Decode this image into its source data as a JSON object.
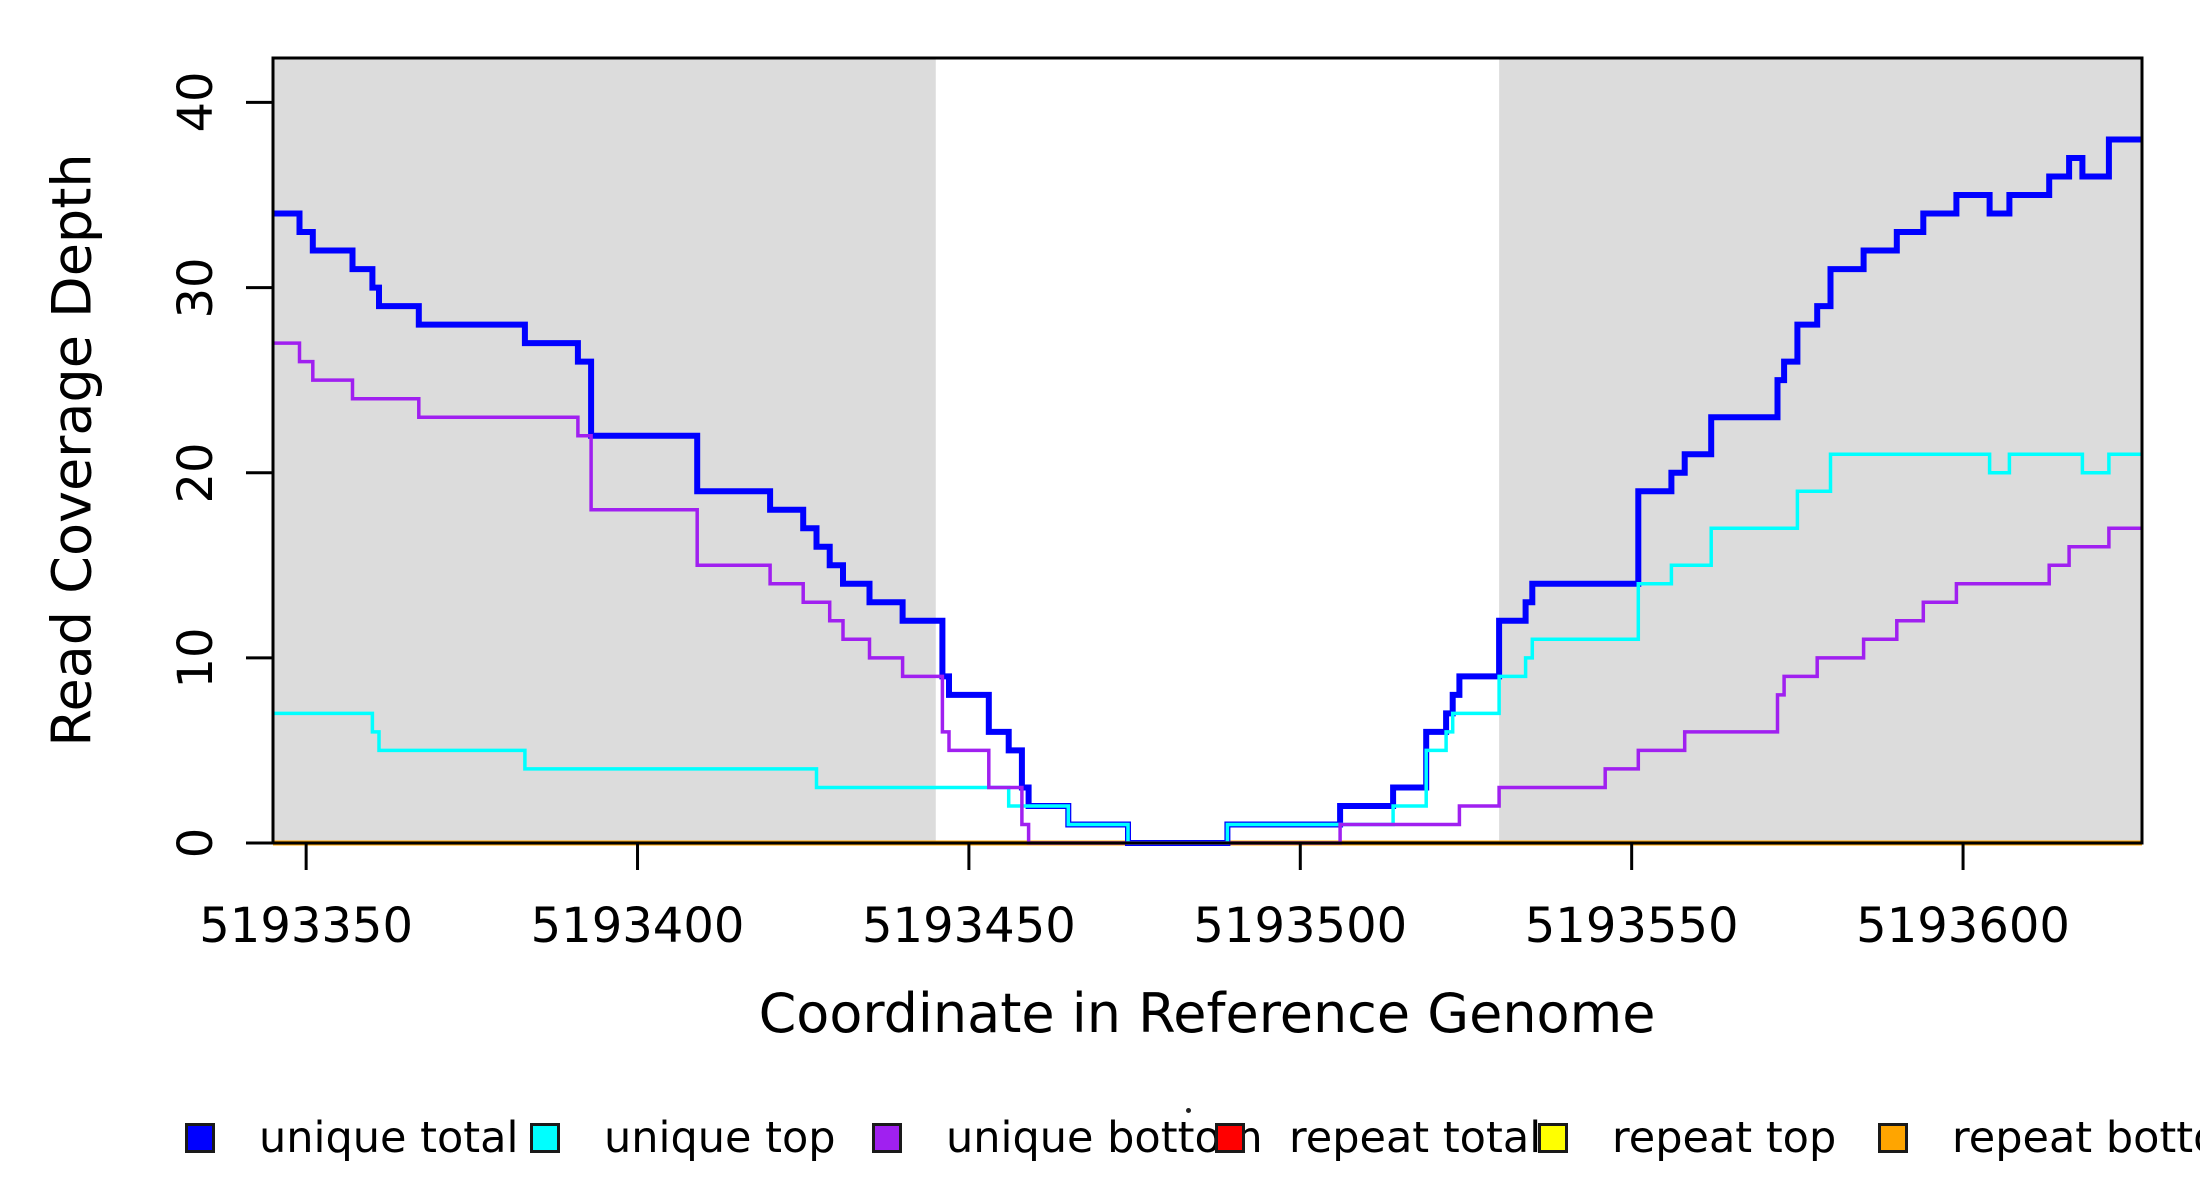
{
  "chart_data": {
    "type": "line",
    "subtype": "step",
    "xlabel": "Coordinate in Reference Genome",
    "ylabel": "Read Coverage Depth",
    "xlim": [
      5193345,
      5193627
    ],
    "ylim": [
      0,
      42.4
    ],
    "x_ticks": [
      5193350,
      5193400,
      5193450,
      5193500,
      5193550,
      5193600
    ],
    "x_tick_labels": [
      "5193350",
      "5193400",
      "5193450",
      "5193500",
      "5193550",
      "5193600"
    ],
    "y_ticks": [
      0,
      10,
      20,
      30,
      40
    ],
    "y_tick_labels": [
      "0",
      "10",
      "20",
      "30",
      "40"
    ],
    "grid": false,
    "legend_position": "bottom",
    "band_color": "#DCDCDC",
    "shaded_regions": [
      [
        5193345,
        5193445
      ],
      [
        5193530,
        5193627
      ]
    ],
    "series_draw_order": [
      3,
      4,
      5,
      0,
      1,
      2
    ],
    "series": [
      {
        "id": "unique-total",
        "name": "unique total",
        "color": "#0000FF",
        "width": 6,
        "points": [
          [
            5193345,
            34
          ],
          [
            5193349,
            33
          ],
          [
            5193351,
            32
          ],
          [
            5193357,
            31
          ],
          [
            5193360,
            30
          ],
          [
            5193361,
            29
          ],
          [
            5193367,
            28
          ],
          [
            5193383,
            27
          ],
          [
            5193391,
            26
          ],
          [
            5193393,
            22
          ],
          [
            5193409,
            19
          ],
          [
            5193420,
            18
          ],
          [
            5193425,
            17
          ],
          [
            5193427,
            16
          ],
          [
            5193429,
            15
          ],
          [
            5193431,
            14
          ],
          [
            5193435,
            13
          ],
          [
            5193440,
            12
          ],
          [
            5193446,
            9
          ],
          [
            5193447,
            8
          ],
          [
            5193453,
            6
          ],
          [
            5193456,
            5
          ],
          [
            5193458,
            3
          ],
          [
            5193459,
            2
          ],
          [
            5193465,
            1
          ],
          [
            5193474,
            0
          ],
          [
            5193489,
            1
          ],
          [
            5193506,
            2
          ],
          [
            5193514,
            3
          ],
          [
            5193519,
            6
          ],
          [
            5193522,
            7
          ],
          [
            5193523,
            8
          ],
          [
            5193524,
            9
          ],
          [
            5193530,
            12
          ],
          [
            5193534,
            13
          ],
          [
            5193535,
            14
          ],
          [
            5193551,
            19
          ],
          [
            5193556,
            20
          ],
          [
            5193558,
            21
          ],
          [
            5193562,
            23
          ],
          [
            5193572,
            25
          ],
          [
            5193573,
            26
          ],
          [
            5193575,
            28
          ],
          [
            5193578,
            29
          ],
          [
            5193580,
            31
          ],
          [
            5193585,
            32
          ],
          [
            5193590,
            33
          ],
          [
            5193594,
            34
          ],
          [
            5193599,
            35
          ],
          [
            5193604,
            34
          ],
          [
            5193607,
            35
          ],
          [
            5193613,
            36
          ],
          [
            5193616,
            37
          ],
          [
            5193618,
            36
          ],
          [
            5193622,
            38
          ]
        ]
      },
      {
        "id": "unique-top",
        "name": "unique top",
        "color": "#00FFFF",
        "width": 3.5,
        "points": [
          [
            5193345,
            7
          ],
          [
            5193360,
            6
          ],
          [
            5193361,
            5
          ],
          [
            5193383,
            4
          ],
          [
            5193427,
            3
          ],
          [
            5193456,
            2
          ],
          [
            5193465,
            1
          ],
          [
            5193474,
            0
          ],
          [
            5193489,
            1
          ],
          [
            5193514,
            2
          ],
          [
            5193519,
            5
          ],
          [
            5193522,
            6
          ],
          [
            5193523,
            7
          ],
          [
            5193530,
            9
          ],
          [
            5193534,
            10
          ],
          [
            5193535,
            11
          ],
          [
            5193551,
            14
          ],
          [
            5193556,
            15
          ],
          [
            5193562,
            17
          ],
          [
            5193575,
            19
          ],
          [
            5193580,
            21
          ],
          [
            5193604,
            20
          ],
          [
            5193607,
            21
          ],
          [
            5193618,
            20
          ],
          [
            5193622,
            21
          ]
        ]
      },
      {
        "id": "unique-bottom",
        "name": "unique bottom",
        "color": "#A020F0",
        "width": 3.5,
        "points": [
          [
            5193345,
            27
          ],
          [
            5193349,
            26
          ],
          [
            5193351,
            25
          ],
          [
            5193357,
            24
          ],
          [
            5193367,
            23
          ],
          [
            5193391,
            22
          ],
          [
            5193393,
            18
          ],
          [
            5193409,
            15
          ],
          [
            5193420,
            14
          ],
          [
            5193425,
            13
          ],
          [
            5193429,
            12
          ],
          [
            5193431,
            11
          ],
          [
            5193435,
            10
          ],
          [
            5193440,
            9
          ],
          [
            5193446,
            6
          ],
          [
            5193447,
            5
          ],
          [
            5193453,
            3
          ],
          [
            5193458,
            1
          ],
          [
            5193459,
            0
          ],
          [
            5193506,
            1
          ],
          [
            5193524,
            2
          ],
          [
            5193530,
            3
          ],
          [
            5193546,
            4
          ],
          [
            5193551,
            5
          ],
          [
            5193558,
            6
          ],
          [
            5193572,
            8
          ],
          [
            5193573,
            9
          ],
          [
            5193578,
            10
          ],
          [
            5193585,
            11
          ],
          [
            5193590,
            12
          ],
          [
            5193594,
            13
          ],
          [
            5193599,
            14
          ],
          [
            5193613,
            15
          ],
          [
            5193616,
            16
          ],
          [
            5193622,
            17
          ]
        ]
      },
      {
        "id": "repeat-total",
        "name": "repeat total",
        "color": "#FF0000",
        "width": 3,
        "points": [
          [
            5193345,
            0
          ]
        ]
      },
      {
        "id": "repeat-top",
        "name": "repeat top",
        "color": "#FFFF00",
        "width": 3,
        "points": [
          [
            5193345,
            0
          ]
        ]
      },
      {
        "id": "repeat-bottom",
        "name": "repeat bottom",
        "color": "#FFA500",
        "width": 5,
        "points": [
          [
            5193345,
            0
          ]
        ]
      }
    ],
    "legend": [
      {
        "label": "unique total",
        "color": "#0000FF"
      },
      {
        "label": "unique top",
        "color": "#00FFFF"
      },
      {
        "label": "unique bottom",
        "color": "#A020F0"
      },
      {
        "label": "repeat total",
        "color": "#FF0000"
      },
      {
        "label": "repeat top",
        "color": "#FFFF00"
      },
      {
        "label": "repeat bottom",
        "color": "#FFA500"
      }
    ]
  }
}
